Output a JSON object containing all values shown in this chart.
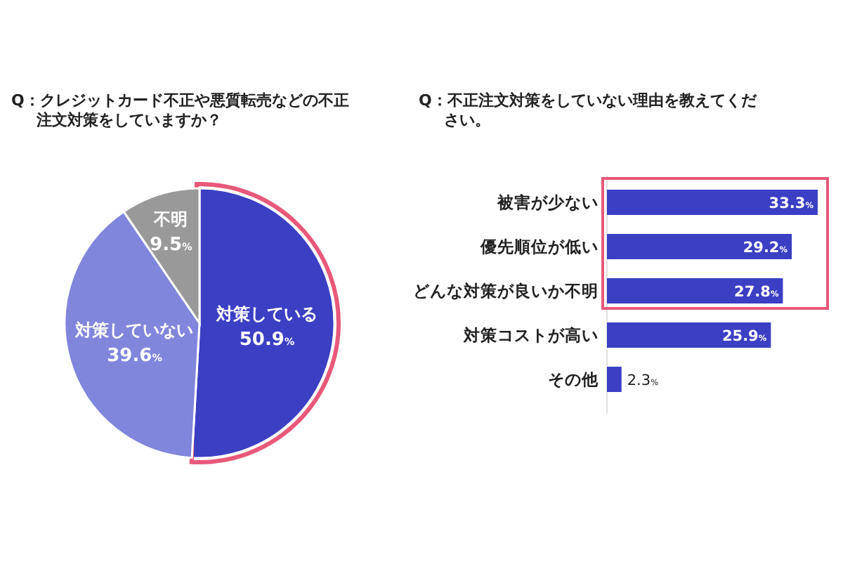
{
  "chart_data": [
    {
      "type": "pie",
      "title": "Q：クレジットカード不正や悪質転売などの不正注文対策をしていますか？",
      "categories": [
        "対策している",
        "対策していない",
        "不明"
      ],
      "values": [
        50.9,
        39.6,
        9.5
      ],
      "value_labels": [
        "50.9%",
        "39.6%",
        "9.5%"
      ],
      "colors": [
        "#3a3fc4",
        "#7f86dc",
        "#999999"
      ]
    },
    {
      "type": "bar",
      "orientation": "horizontal",
      "title": "Q：不正注文対策をしていない理由を教えてください。",
      "categories": [
        "被害が少ない",
        "優先順位が低い",
        "どんな対策が良いか不明",
        "対策コストが高い",
        "その他"
      ],
      "values": [
        33.3,
        29.2,
        27.8,
        25.9,
        2.3
      ],
      "value_labels": [
        "33.3%",
        "29.2%",
        "27.8%",
        "25.9%",
        "2.3%"
      ],
      "color": "#3a3fc4"
    }
  ]
}
